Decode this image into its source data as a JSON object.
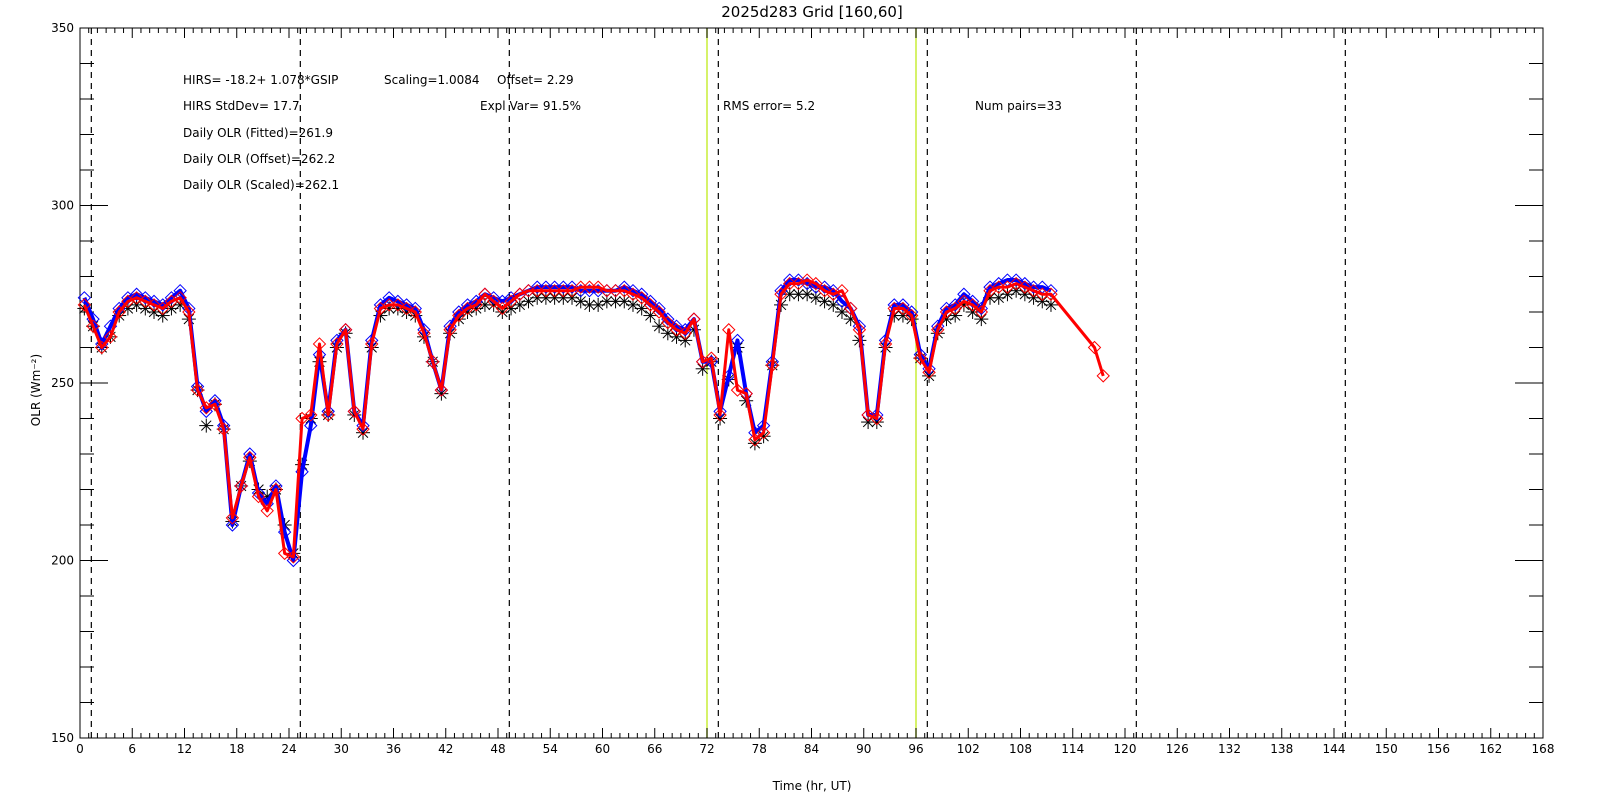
{
  "chart_data": {
    "type": "line",
    "title": "2025d283 Grid [160,60]",
    "xlabel": "Time (hr, UT)",
    "ylabel": "OLR (Wm⁻²)",
    "xlim": [
      0,
      168
    ],
    "ylim": [
      150,
      350
    ],
    "x_ticks": [
      0,
      6,
      12,
      18,
      24,
      30,
      36,
      42,
      48,
      54,
      60,
      66,
      72,
      78,
      84,
      90,
      96,
      102,
      108,
      114,
      120,
      126,
      132,
      138,
      144,
      150,
      156,
      162,
      168
    ],
    "y_ticks": [
      150,
      200,
      250,
      300,
      350
    ],
    "grid": false,
    "colors": {
      "axis": "#000000",
      "dashed_line": "#000000",
      "yellow_line": "#ccee44",
      "black_series": "#000000",
      "blue_series": "#0000ff",
      "red_series": "#ff0000"
    },
    "dashed_vertical_lines": [
      1.3,
      25.3,
      49.3,
      73.3,
      97.3,
      121.3,
      145.3
    ],
    "yellow_vertical_lines": [
      72,
      96
    ],
    "annotations": {
      "fit_eq": "HIRS=   -18.2+   1.078*GSIP",
      "scaling": "Scaling=1.0084",
      "offset": "Offset=   2.29",
      "stddev": "HIRS StdDev= 17.7",
      "expl_var": "Expl Var= 91.5%",
      "rms": "RMS error=   5.2",
      "num_pairs": "Num pairs=33",
      "daily_fitted": "Daily OLR (Fitted)=261.9",
      "daily_offset": "Daily OLR (Offset)=262.2",
      "daily_scaled": "Daily OLR (Scaled)=262.1"
    },
    "series": [
      {
        "color": "blue",
        "marker": "diamond",
        "x": [
          0.5,
          1.5,
          2.5,
          3.5,
          4.5,
          5.5,
          6.5,
          7.5,
          8.5,
          9.5,
          10.5,
          11.5,
          12.5,
          13.5,
          14.5,
          15.5,
          16.5,
          17.5,
          18.5,
          19.5,
          20.5,
          21.5,
          22.5,
          23.5,
          24.5,
          25.5,
          26.5,
          27.5,
          28.5,
          29.5,
          30.5,
          31.5,
          32.5,
          33.5,
          34.5,
          35.5,
          36.5,
          37.5,
          38.5,
          39.5,
          40.5,
          41.5,
          42.5,
          43.5,
          44.5,
          45.5,
          46.5,
          47.5,
          48.5,
          49.5,
          50.5,
          51.5,
          52.5,
          53.5,
          54.5,
          55.5,
          56.5,
          57.5,
          58.5,
          59.5,
          60.5,
          61.5,
          62.5,
          63.5,
          64.5,
          65.5,
          66.5,
          67.5,
          68.5,
          69.5,
          70.5,
          71.5,
          72.5,
          73.5,
          74.5,
          75.5,
          76.5,
          77.5,
          78.5,
          79.5,
          80.5,
          81.5,
          82.5,
          83.5,
          84.5,
          85.5,
          86.5,
          87.5,
          88.5,
          89.5,
          90.5,
          91.5,
          92.5,
          93.5,
          94.5,
          95.5,
          96.5,
          97.5,
          98.5,
          99.5,
          100.5,
          101.5,
          102.5,
          103.5,
          104.5,
          105.5,
          106.5,
          107.5,
          108.5,
          109.5,
          110.5,
          111.5
        ],
        "values": [
          274,
          268,
          261,
          266,
          271,
          274,
          275,
          274,
          273,
          272,
          274,
          276,
          271,
          249,
          242,
          245,
          238,
          210,
          221,
          230,
          219,
          216,
          221,
          208,
          200,
          225,
          238,
          258,
          242,
          262,
          265,
          242,
          238,
          262,
          272,
          274,
          273,
          272,
          271,
          265,
          256,
          248,
          266,
          270,
          272,
          273,
          275,
          274,
          273,
          274,
          275,
          276,
          277,
          277,
          277,
          277,
          277,
          276,
          276,
          276,
          276,
          276,
          277,
          276,
          275,
          273,
          271,
          268,
          266,
          265,
          268,
          256,
          256,
          242,
          252,
          262,
          247,
          236,
          238,
          256,
          276,
          279,
          279,
          278,
          277,
          277,
          276,
          273,
          271,
          266,
          241,
          241,
          262,
          272,
          272,
          270,
          258,
          254,
          266,
          271,
          272,
          275,
          273,
          271,
          277,
          278,
          279,
          279,
          278,
          277,
          277,
          276
        ]
      },
      {
        "color": "black",
        "marker": "asterisk",
        "x": [
          0.5,
          1.5,
          2.5,
          3.5,
          4.5,
          5.5,
          6.5,
          7.5,
          8.5,
          9.5,
          10.5,
          11.5,
          12.5,
          13.5,
          14.5,
          15.5,
          16.5,
          17.5,
          18.5,
          19.5,
          20.5,
          21.5,
          22.5,
          23.5,
          24.5,
          25.5,
          26.5,
          27.5,
          28.5,
          29.5,
          30.5,
          31.5,
          32.5,
          33.5,
          34.5,
          35.5,
          36.5,
          37.5,
          38.5,
          39.5,
          40.5,
          41.5,
          42.5,
          43.5,
          44.5,
          45.5,
          46.5,
          47.5,
          48.5,
          49.5,
          50.5,
          51.5,
          52.5,
          53.5,
          54.5,
          55.5,
          56.5,
          57.5,
          58.5,
          59.5,
          60.5,
          61.5,
          62.5,
          63.5,
          64.5,
          65.5,
          66.5,
          67.5,
          68.5,
          69.5,
          70.5,
          71.5,
          72.5,
          73.5,
          74.5,
          75.5,
          76.5,
          77.5,
          78.5,
          79.5,
          80.5,
          81.5,
          82.5,
          83.5,
          84.5,
          85.5,
          86.5,
          87.5,
          88.5,
          89.5,
          90.5,
          91.5,
          92.5,
          93.5,
          94.5,
          95.5,
          96.5,
          97.5,
          98.5,
          99.5,
          100.5,
          101.5,
          102.5,
          103.5,
          104.5,
          105.5,
          106.5,
          107.5,
          108.5,
          109.5,
          110.5,
          111.5
        ],
        "values": [
          271,
          266,
          260,
          263,
          269,
          271,
          272,
          271,
          270,
          269,
          271,
          272,
          268,
          248,
          238,
          244,
          237,
          211,
          221,
          228,
          220,
          218,
          220,
          210,
          202,
          227,
          240,
          256,
          241,
          260,
          264,
          241,
          236,
          260,
          269,
          271,
          271,
          270,
          269,
          263,
          256,
          247,
          264,
          268,
          270,
          271,
          272,
          272,
          270,
          271,
          272,
          273,
          274,
          274,
          274,
          274,
          274,
          273,
          272,
          272,
          273,
          273,
          273,
          272,
          271,
          269,
          266,
          264,
          263,
          262,
          265,
          254,
          256,
          240,
          251,
          260,
          245,
          233,
          235,
          255,
          272,
          275,
          275,
          275,
          274,
          273,
          272,
          270,
          268,
          262,
          239,
          239,
          260,
          269,
          269,
          268,
          257,
          252,
          264,
          268,
          269,
          272,
          270,
          268,
          274,
          274,
          275,
          276,
          275,
          274,
          273,
          272
        ]
      },
      {
        "color": "red",
        "marker": "diamond",
        "x": [
          0.5,
          1.5,
          2.5,
          3.5,
          4.5,
          5.5,
          6.5,
          7.5,
          8.5,
          9.5,
          10.5,
          11.5,
          12.5,
          13.5,
          14.5,
          15.5,
          16.5,
          17.5,
          18.5,
          19.5,
          20.5,
          21.5,
          22.5,
          23.5,
          24.5,
          25.5,
          26.5,
          27.5,
          28.5,
          29.5,
          30.5,
          31.5,
          32.5,
          33.5,
          34.5,
          35.5,
          36.5,
          37.5,
          38.5,
          39.5,
          40.5,
          41.5,
          42.5,
          43.5,
          44.5,
          45.5,
          46.5,
          47.5,
          48.5,
          49.5,
          50.5,
          51.5,
          52.5,
          53.5,
          54.5,
          55.5,
          56.5,
          57.5,
          58.5,
          59.5,
          60.5,
          61.5,
          62.5,
          63.5,
          64.5,
          65.5,
          66.5,
          67.5,
          68.5,
          69.5,
          70.5,
          71.5,
          72.5,
          73.5,
          74.5,
          75.5,
          76.5,
          77.5,
          78.5,
          79.5,
          80.5,
          81.5,
          82.5,
          83.5,
          84.5,
          85.5,
          86.5,
          87.5,
          88.5,
          89.5,
          90.5,
          91.5,
          92.5,
          93.5,
          94.5,
          95.5,
          96.5,
          97.5,
          98.5,
          99.5,
          100.5,
          101.5,
          102.5,
          103.5,
          104.5,
          105.5,
          106.5,
          107.5,
          108.5,
          109.5,
          110.5,
          111.5,
          116.5,
          117.5
        ],
        "values": [
          272,
          266,
          260,
          263,
          270,
          273,
          274,
          273,
          272,
          271,
          273,
          274,
          270,
          248,
          243,
          244,
          237,
          212,
          221,
          229,
          218,
          214,
          220,
          202,
          201,
          240,
          241,
          261,
          241,
          261,
          265,
          242,
          237,
          261,
          271,
          272,
          272,
          271,
          270,
          264,
          256,
          248,
          265,
          269,
          271,
          272,
          275,
          273,
          271,
          273,
          275,
          276,
          276,
          276,
          276,
          276,
          276,
          277,
          277,
          277,
          276,
          276,
          276,
          275,
          274,
          272,
          270,
          267,
          265,
          264,
          268,
          256,
          257,
          241,
          265,
          248,
          247,
          234,
          236,
          255,
          275,
          278,
          278,
          279,
          278,
          276,
          275,
          276,
          271,
          265,
          241,
          240,
          261,
          271,
          271,
          269,
          257,
          253,
          265,
          270,
          271,
          273,
          272,
          270,
          276,
          277,
          277,
          278,
          277,
          276,
          275,
          275,
          260,
          252
        ]
      }
    ]
  }
}
